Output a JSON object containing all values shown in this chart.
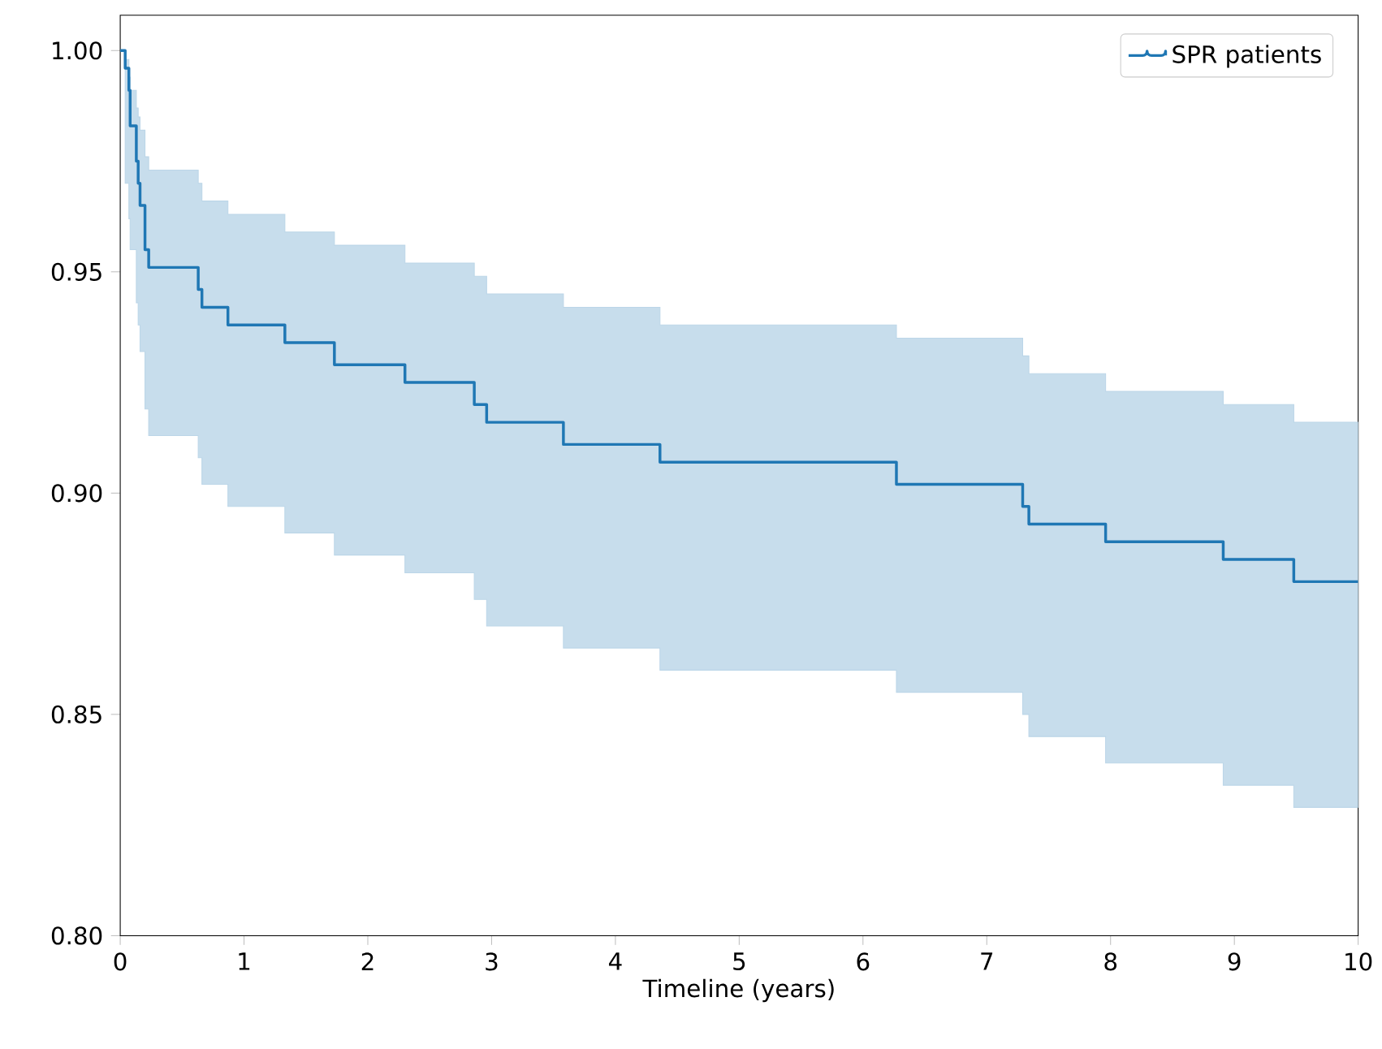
{
  "chart_data": {
    "type": "step",
    "xlabel": "Timeline (years)",
    "xlim": [
      0,
      10
    ],
    "ylim": [
      0.8,
      1.008
    ],
    "xticks": [
      0,
      1,
      2,
      3,
      4,
      5,
      6,
      7,
      8,
      9,
      10
    ],
    "yticks": [
      {
        "value": 0.8,
        "label": "0.80"
      },
      {
        "value": 0.85,
        "label": "0.85"
      },
      {
        "value": 0.9,
        "label": "0.90"
      },
      {
        "value": 0.95,
        "label": "0.95"
      },
      {
        "value": 1.0,
        "label": "1.00"
      }
    ],
    "legend": "top right",
    "series": [
      {
        "name": "SPR patients",
        "color": "#1f77b4",
        "x": [
          0,
          0.04,
          0.07,
          0.08,
          0.13,
          0.145,
          0.16,
          0.2,
          0.23,
          0.63,
          0.66,
          0.87,
          1.33,
          1.73,
          2.3,
          2.86,
          2.96,
          3.58,
          4.36,
          6.27,
          7.29,
          7.34,
          7.96,
          8.91,
          9.48,
          10
        ],
        "values": [
          1.0,
          0.996,
          0.991,
          0.983,
          0.975,
          0.97,
          0.965,
          0.955,
          0.951,
          0.946,
          0.942,
          0.938,
          0.934,
          0.929,
          0.925,
          0.92,
          0.916,
          0.911,
          0.907,
          0.902,
          0.897,
          0.893,
          0.889,
          0.885,
          0.88,
          0.88
        ],
        "upper": [
          1.0,
          0.998,
          0.994,
          0.991,
          0.987,
          0.985,
          0.982,
          0.976,
          0.973,
          0.97,
          0.966,
          0.963,
          0.959,
          0.956,
          0.952,
          0.949,
          0.945,
          0.942,
          0.938,
          0.935,
          0.931,
          0.927,
          0.923,
          0.92,
          0.916,
          0.916
        ],
        "lower": [
          1.0,
          0.97,
          0.962,
          0.955,
          0.943,
          0.938,
          0.932,
          0.919,
          0.913,
          0.908,
          0.902,
          0.897,
          0.891,
          0.886,
          0.882,
          0.876,
          0.87,
          0.865,
          0.86,
          0.855,
          0.85,
          0.845,
          0.839,
          0.834,
          0.829,
          0.829
        ]
      }
    ]
  }
}
